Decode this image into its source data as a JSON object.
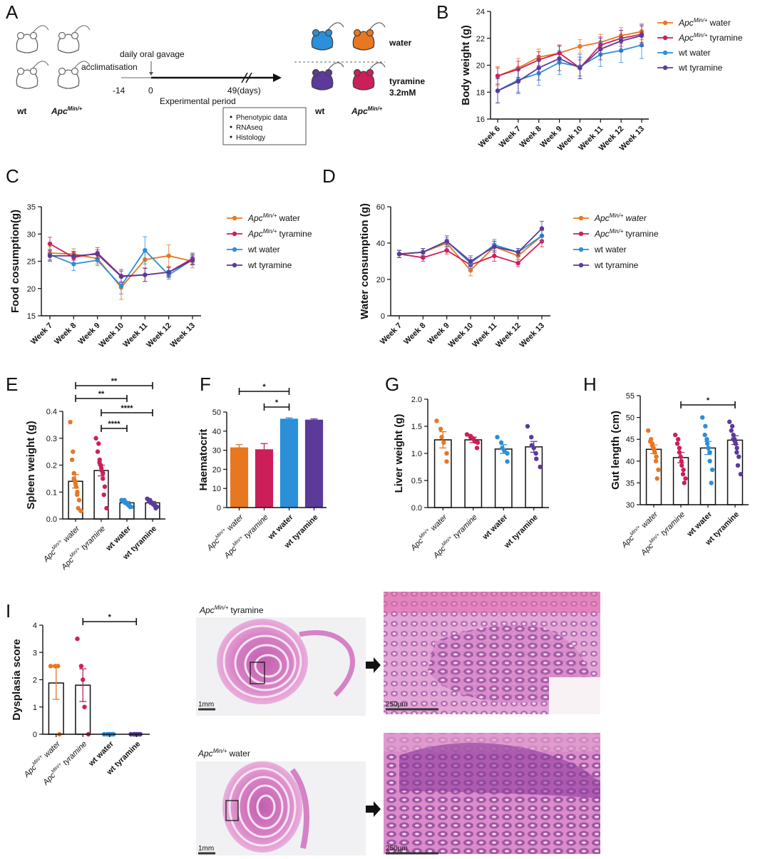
{
  "colors": {
    "apc_water": "#e87722",
    "apc_tyramine": "#cc1f5a",
    "wt_water": "#2b8fd9",
    "wt_tyramine": "#5b3a9a",
    "axis": "#111111",
    "grey_text": "#9a9a9a"
  },
  "panels": {
    "A": "A",
    "B": "B",
    "C": "C",
    "D": "D",
    "E": "E",
    "F": "F",
    "G": "G",
    "H": "H",
    "I": "I"
  },
  "schematic": {
    "wt_label": "wt",
    "apc_label": "Apc",
    "apc_sup": "Min/+",
    "daily_oral_gavage": "daily oral gavage",
    "acclimatisation": "acclimatisation",
    "t_minus14": "-14",
    "t_zero": "0",
    "t_end": "49(days)",
    "experimental_period": "Experimental period",
    "water_label": "water",
    "tyramine_label": "tyramine",
    "tyramine_conc": "3.2mM",
    "outcomes": [
      "Phenotypic data",
      "RNAseq",
      "Histology"
    ]
  },
  "legend": {
    "apc": "Apc",
    "sup": "Min/+",
    "water": "water",
    "tyramine": "tyramine",
    "wt_water": "wt water",
    "wt_tyramine": "wt tyramine"
  },
  "group_labels": {
    "apc": "Apc",
    "sup": "Min/+",
    "water": "water",
    "tyramine": "tyramine",
    "wt_water": "wt water",
    "wt_tyramine": "wt tyramine"
  },
  "histology": {
    "top_title_apc": "Apc",
    "top_title_sup": "Min/+",
    "top_title_rest": "tyramine",
    "bottom_title_apc": "Apc",
    "bottom_title_sup": "Min/+",
    "bottom_title_rest": "water",
    "scale_low": "1mm",
    "scale_high": "250µm"
  },
  "chart_data": [
    {
      "id": "B",
      "type": "line",
      "ylabel": "Body weight (g)",
      "ylim": [
        16,
        24
      ],
      "yticks": [
        16,
        18,
        20,
        22,
        24
      ],
      "x": [
        "Week 6",
        "Week 7",
        "Week 8",
        "Week 9",
        "Week 10",
        "Week 11",
        "Week 12",
        "Week 13"
      ],
      "series": [
        {
          "values": [
            19.2,
            19.8,
            20.6,
            20.9,
            21.4,
            21.7,
            22.2,
            22.5
          ],
          "err": [
            0.7,
            0.7,
            0.6,
            0.6,
            0.5,
            0.6,
            0.6,
            0.6
          ]
        },
        {
          "values": [
            19.2,
            19.7,
            20.4,
            20.9,
            19.8,
            21.5,
            22.0,
            22.3
          ],
          "err": [
            0.6,
            0.6,
            0.6,
            0.6,
            0.6,
            0.6,
            0.6,
            0.6
          ]
        },
        {
          "values": [
            18.1,
            18.9,
            19.4,
            20.2,
            19.9,
            20.8,
            21.1,
            21.5
          ],
          "err": [
            0.9,
            0.9,
            0.9,
            0.9,
            0.9,
            0.9,
            0.9,
            1.0
          ]
        },
        {
          "values": [
            18.1,
            18.8,
            19.8,
            20.5,
            19.8,
            21.2,
            21.8,
            22.2
          ],
          "err": [
            0.9,
            0.9,
            0.9,
            0.9,
            0.8,
            0.8,
            0.8,
            0.8
          ]
        }
      ]
    },
    {
      "id": "C",
      "type": "line",
      "ylabel": "Food cosumption(g)",
      "ylim": [
        15,
        35
      ],
      "yticks": [
        15,
        20,
        25,
        30,
        35
      ],
      "x": [
        "Week 7",
        "Week 8",
        "Week 9",
        "Week 10",
        "Week 11",
        "Week 12",
        "Week 13"
      ],
      "series": [
        {
          "values": [
            26.5,
            26.3,
            25.5,
            20.2,
            25.3,
            26.0,
            25.0
          ],
          "err": [
            1.2,
            1.0,
            1.0,
            2.2,
            1.5,
            2.0,
            1.2
          ]
        },
        {
          "values": [
            28.2,
            25.7,
            26.5,
            22.3,
            22.5,
            23.0,
            25.5
          ],
          "err": [
            1.2,
            1.0,
            1.0,
            1.2,
            1.2,
            1.0,
            1.0
          ]
        },
        {
          "values": [
            26.2,
            24.5,
            25.2,
            20.5,
            27.0,
            22.5,
            25.3
          ],
          "err": [
            1.0,
            1.2,
            1.0,
            1.5,
            2.5,
            0.8,
            1.0
          ]
        },
        {
          "values": [
            26.0,
            26.0,
            26.3,
            22.2,
            22.5,
            23.0,
            25.2
          ],
          "err": [
            1.0,
            0.8,
            0.8,
            1.0,
            1.2,
            0.8,
            0.8
          ]
        }
      ]
    },
    {
      "id": "D",
      "type": "line",
      "ylabel": "Water consumption (g)",
      "ylim": [
        0,
        60
      ],
      "yticks": [
        0,
        20,
        40,
        60
      ],
      "x": [
        "Week 7",
        "Week 8",
        "Week 9",
        "Week 10",
        "Week 11",
        "Week 12",
        "Week 13"
      ],
      "series": [
        {
          "values": [
            34,
            35,
            40,
            25,
            38,
            33,
            44
          ],
          "err": [
            2,
            2,
            2,
            3,
            3,
            2,
            3
          ]
        },
        {
          "values": [
            34,
            32,
            36,
            28,
            33,
            29,
            41
          ],
          "err": [
            2,
            2,
            2,
            2,
            3,
            2,
            3
          ]
        },
        {
          "values": [
            34,
            35,
            41,
            29,
            39,
            35,
            44
          ],
          "err": [
            2,
            2,
            2,
            3,
            3,
            2,
            3
          ]
        },
        {
          "values": [
            34,
            35,
            41,
            30,
            38,
            35,
            48
          ],
          "err": [
            2,
            2,
            3,
            3,
            3,
            2,
            4
          ]
        }
      ]
    },
    {
      "id": "E",
      "type": "bar",
      "ylabel": "Spleen weight (g)",
      "ylim": [
        0,
        0.4
      ],
      "yticks": [
        0.0,
        0.1,
        0.2,
        0.3,
        0.4
      ],
      "values": [
        0.14,
        0.18,
        0.06,
        0.06
      ],
      "err": [
        0.025,
        0.02,
        0.005,
        0.005
      ],
      "points": [
        [
          0.36,
          0.25,
          0.22,
          0.17,
          0.15,
          0.14,
          0.13,
          0.12,
          0.1,
          0.09,
          0.07,
          0.04,
          0.03
        ],
        [
          0.3,
          0.28,
          0.25,
          0.22,
          0.21,
          0.2,
          0.19,
          0.18,
          0.17,
          0.15,
          0.12,
          0.09,
          0.04
        ],
        [
          0.07,
          0.07,
          0.065,
          0.06,
          0.06,
          0.06,
          0.055,
          0.055,
          0.05,
          0.05,
          0.045,
          0.045
        ],
        [
          0.075,
          0.07,
          0.065,
          0.06,
          0.06,
          0.06,
          0.055,
          0.055,
          0.05,
          0.05,
          0.045,
          0.04
        ]
      ],
      "significance": [
        {
          "from": 0,
          "to": 3,
          "label": "**"
        },
        {
          "from": 0,
          "to": 2,
          "label": "**"
        },
        {
          "from": 1,
          "to": 3,
          "label": "****"
        },
        {
          "from": 1,
          "to": 2,
          "label": "****"
        }
      ]
    },
    {
      "id": "F",
      "type": "bar",
      "ylabel": "Haematocrit",
      "ylim": [
        0,
        50
      ],
      "yticks": [
        0,
        10,
        20,
        30,
        40,
        50
      ],
      "values": [
        31.5,
        30.5,
        46.5,
        46.0
      ],
      "err": [
        1.5,
        3.0,
        0.4,
        0.4
      ],
      "significance": [
        {
          "from": 0,
          "to": 2,
          "label": "*"
        },
        {
          "from": 1,
          "to": 2,
          "label": "*"
        }
      ]
    },
    {
      "id": "G",
      "type": "bar",
      "ylabel": "Liver weight (g)",
      "ylim": [
        0,
        2.0
      ],
      "yticks": [
        0.0,
        0.5,
        1.0,
        1.5,
        2.0
      ],
      "values": [
        1.25,
        1.25,
        1.08,
        1.12
      ],
      "err": [
        0.15,
        0.05,
        0.08,
        0.1
      ],
      "points": [
        [
          1.6,
          1.45,
          1.3,
          1.2,
          1.0,
          0.85
        ],
        [
          1.35,
          1.32,
          1.3,
          1.28,
          1.25,
          1.22,
          1.2,
          1.1
        ],
        [
          1.3,
          1.2,
          1.1,
          1.05,
          1.0,
          0.85
        ],
        [
          1.5,
          1.3,
          1.15,
          1.1,
          1.0,
          0.9,
          0.75
        ]
      ],
      "significance": []
    },
    {
      "id": "H",
      "type": "bar",
      "ylabel": "Gut length (cm)",
      "ylim": [
        30,
        55
      ],
      "yticks": [
        30,
        35,
        40,
        45,
        50,
        55
      ],
      "values": [
        42.7,
        40.8,
        43.0,
        44.8
      ],
      "err": [
        1.0,
        1.2,
        1.5,
        1.0
      ],
      "points": [
        [
          47,
          45,
          44.5,
          44,
          43.5,
          43,
          42.5,
          42,
          41,
          40,
          38,
          36
        ],
        [
          46,
          45,
          44,
          43,
          42,
          41,
          40,
          39,
          38,
          37,
          36,
          35
        ],
        [
          50,
          48,
          46,
          45,
          44,
          43,
          42,
          40,
          38,
          35
        ],
        [
          49,
          48,
          47,
          46,
          45,
          45,
          44.5,
          44,
          43,
          42,
          41,
          39,
          37
        ]
      ],
      "significance": [
        {
          "from": 1,
          "to": 3,
          "label": "*"
        }
      ]
    },
    {
      "id": "I",
      "type": "bar",
      "ylabel": "Dysplasia score",
      "ylim": [
        0,
        4
      ],
      "yticks": [
        0,
        1,
        2,
        3,
        4
      ],
      "values": [
        1.88,
        1.8,
        0.0,
        0.0
      ],
      "err": [
        0.6,
        0.6,
        0.0,
        0.0
      ],
      "points": [
        [
          2.5,
          2.5,
          2.5,
          0.0
        ],
        [
          3.5,
          2.5,
          2.0,
          1.0,
          0.0
        ],
        [
          0,
          0,
          0,
          0,
          0,
          0,
          0,
          0
        ],
        [
          0,
          0,
          0,
          0,
          0,
          0,
          0,
          0
        ]
      ],
      "significance": [
        {
          "from": 1,
          "to": 3,
          "label": "*"
        }
      ]
    }
  ]
}
